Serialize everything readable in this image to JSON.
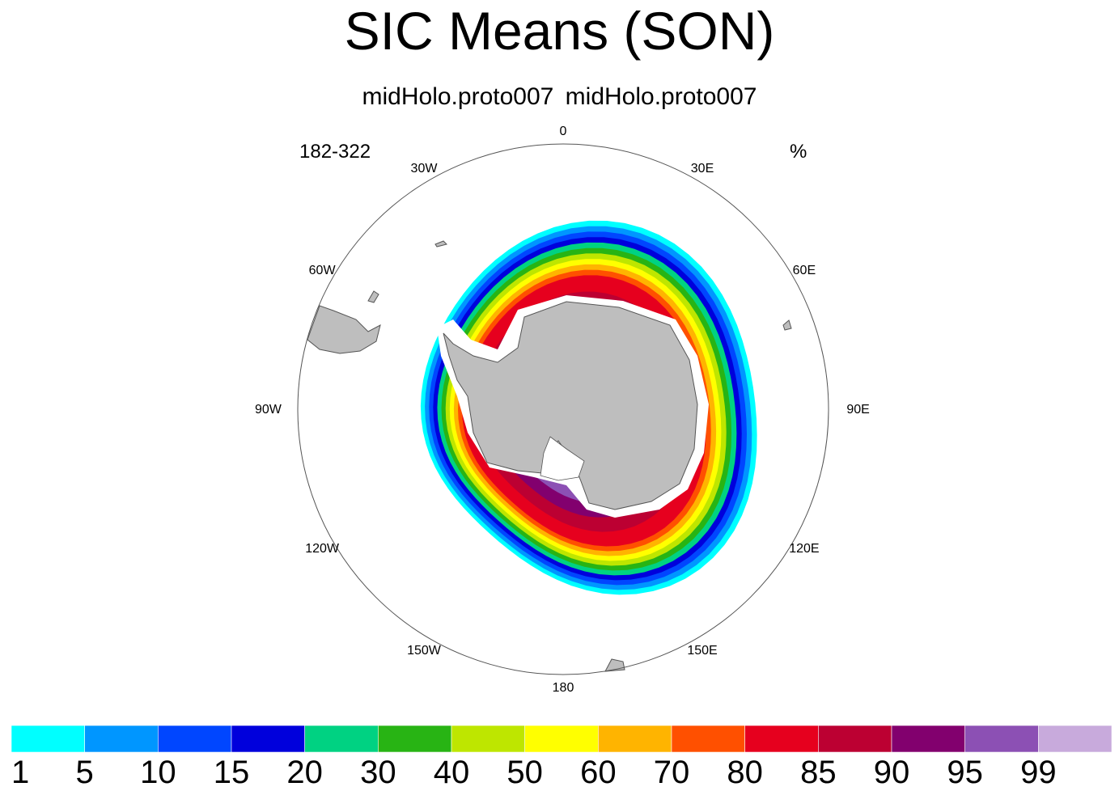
{
  "title": "SIC Means (SON)",
  "subtitle": "midHolo.proto007  midHolo.proto007",
  "left_string": "182-322",
  "right_string": "%",
  "longitude_labels": [
    {
      "label": "0",
      "lon": 0
    },
    {
      "label": "30E",
      "lon": 30
    },
    {
      "label": "60E",
      "lon": 60
    },
    {
      "label": "90E",
      "lon": 90
    },
    {
      "label": "120E",
      "lon": 120
    },
    {
      "label": "150E",
      "lon": 150
    },
    {
      "label": "180",
      "lon": 180
    },
    {
      "label": "150W",
      "lon": -150
    },
    {
      "label": "120W",
      "lon": -120
    },
    {
      "label": "90W",
      "lon": -90
    },
    {
      "label": "60W",
      "lon": -60
    },
    {
      "label": "30W",
      "lon": -30
    }
  ],
  "colorbar": {
    "levels": [
      "1",
      "5",
      "10",
      "15",
      "20",
      "30",
      "40",
      "50",
      "60",
      "70",
      "80",
      "85",
      "90",
      "95",
      "99"
    ],
    "colors": [
      "#00ffff",
      "#0096ff",
      "#0046ff",
      "#0000dc",
      "#00d282",
      "#28b414",
      "#bee600",
      "#ffff00",
      "#ffb400",
      "#ff5000",
      "#e6001e",
      "#bc0032",
      "#82006e",
      "#8c50b4",
      "#c8aadc"
    ]
  },
  "colors": {
    "land": "#bebebe",
    "ice_shelf": "#ffffff",
    "coastline": "#555555"
  }
}
